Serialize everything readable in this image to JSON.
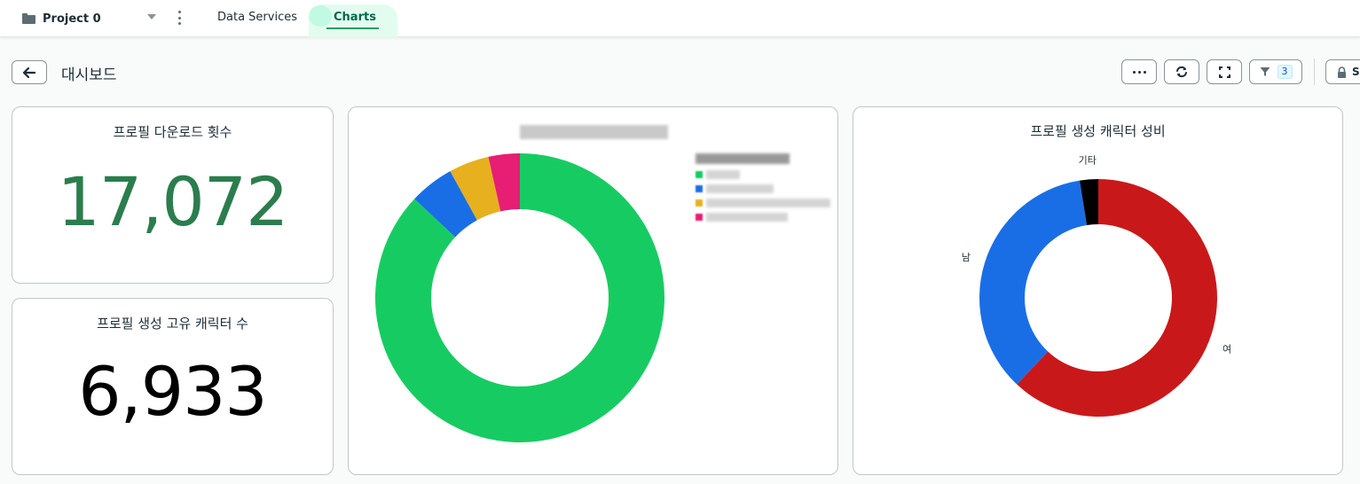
{
  "nav": {
    "project_name": "Project 0",
    "tabs": [
      {
        "label": "Data Services"
      },
      {
        "label": "Charts"
      }
    ]
  },
  "toolbar": {
    "page_title": "대시보드",
    "filter_count": "3",
    "share_label": "S"
  },
  "cards": {
    "downloads": {
      "title": "프로필 다운로드 횟수",
      "value": "17,072",
      "value_color": "#2b7d4d"
    },
    "unique_characters": {
      "title": "프로필 생성 고유 캐릭터 수",
      "value": "6,933",
      "value_color": "#000000"
    },
    "gender_ratio": {
      "title": "프로필 생성 캐릭터 성비"
    }
  },
  "chart_data": [
    {
      "type": "pie",
      "donut": true,
      "title": "",
      "values": [
        87.0,
        5.0,
        4.5,
        3.5
      ],
      "colors": [
        "#16cc62",
        "#196ee6",
        "#e6b01e",
        "#e81d74"
      ],
      "legend_placement": "top-right"
    },
    {
      "type": "pie",
      "donut": true,
      "title": "프로필 생성 캐릭터 성비",
      "categories": [
        "여",
        "남",
        "기타"
      ],
      "values": [
        62.0,
        35.5,
        2.5
      ],
      "colors": [
        "#c9181a",
        "#1a6ee5",
        "#000000"
      ]
    }
  ]
}
